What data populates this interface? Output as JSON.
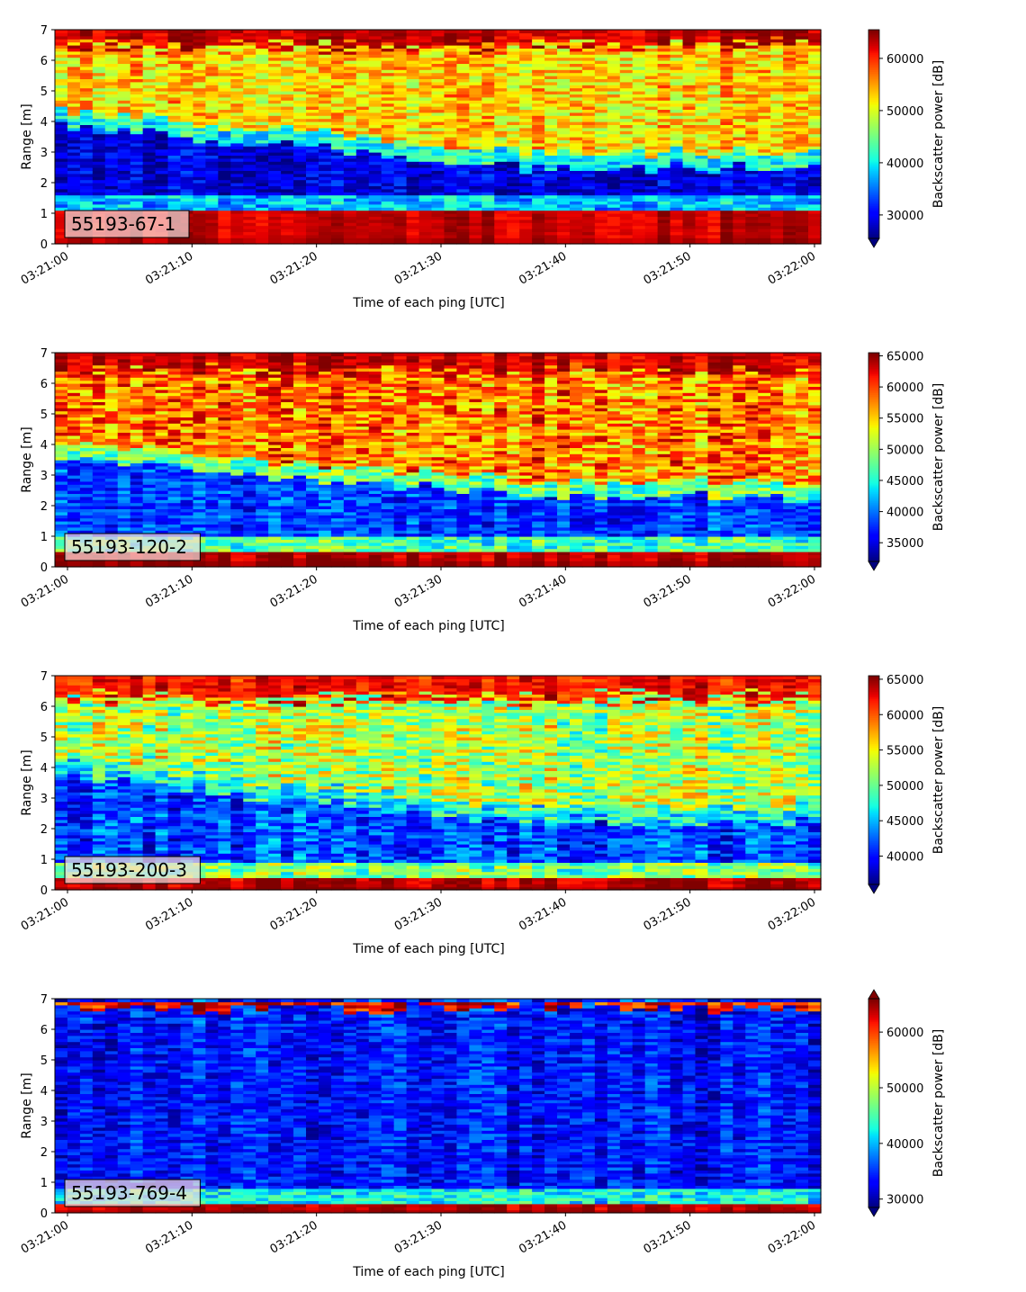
{
  "chart_data": [
    {
      "type": "heatmap",
      "panel_label": "55193-67-1",
      "xlabel": "Time of each ping [UTC]",
      "ylabel": "Range [m]",
      "xticks": [
        "03:21:00",
        "03:21:10",
        "03:21:20",
        "03:21:30",
        "03:21:40",
        "03:21:50",
        "03:22:00"
      ],
      "yticks": [
        "0",
        "1",
        "2",
        "3",
        "4",
        "5",
        "6",
        "7"
      ],
      "ylim": [
        0,
        7
      ],
      "colorbar": {
        "label": "Backscatter power [dB]",
        "ticks": [
          "30000",
          "40000",
          "50000",
          "60000"
        ],
        "tick_values": [
          30000,
          40000,
          50000,
          60000
        ],
        "range": [
          25500,
          65500
        ],
        "extend": "min"
      },
      "colormap": "jet",
      "profile": {
        "bottom_edge": 0.22,
        "bottom_band_top": 1.12,
        "bottom_band_value": 64000,
        "layer_top_start": 3.9,
        "layer_top_end": 2.5,
        "layer_value": 29000,
        "above_value": 53000,
        "top_value": 65000,
        "top_start": 6.5
      }
    },
    {
      "type": "heatmap",
      "panel_label": "55193-120-2",
      "xlabel": "Time of each ping [UTC]",
      "ylabel": "Range [m]",
      "xticks": [
        "03:21:00",
        "03:21:10",
        "03:21:20",
        "03:21:30",
        "03:21:40",
        "03:21:50",
        "03:22:00"
      ],
      "yticks": [
        "0",
        "1",
        "2",
        "3",
        "4",
        "5",
        "6",
        "7"
      ],
      "ylim": [
        0,
        7
      ],
      "colorbar": {
        "label": "Backscatter power [dB]",
        "ticks": [
          "35000",
          "40000",
          "45000",
          "50000",
          "55000",
          "60000",
          "65000"
        ],
        "tick_values": [
          35000,
          40000,
          45000,
          50000,
          55000,
          60000,
          65000
        ],
        "range": [
          32000,
          65500
        ],
        "extend": "min"
      },
      "colormap": "jet",
      "profile": {
        "bottom_edge": 0.22,
        "bottom_band_top": 0.55,
        "bottom_band_value": 65000,
        "layer_top_start": 3.6,
        "layer_top_end": 2.3,
        "layer_value": 38000,
        "above_value": 58000,
        "top_value": 65000,
        "top_start": 6.4
      }
    },
    {
      "type": "heatmap",
      "panel_label": "55193-200-3",
      "xlabel": "Time of each ping [UTC]",
      "ylabel": "Range [m]",
      "xticks": [
        "03:21:00",
        "03:21:10",
        "03:21:20",
        "03:21:30",
        "03:21:40",
        "03:21:50",
        "03:22:00"
      ],
      "yticks": [
        "0",
        "1",
        "2",
        "3",
        "4",
        "5",
        "6",
        "7"
      ],
      "ylim": [
        0,
        7
      ],
      "colorbar": {
        "label": "Backscatter power [dB]",
        "ticks": [
          "40000",
          "45000",
          "50000",
          "55000",
          "60000",
          "65000"
        ],
        "tick_values": [
          40000,
          45000,
          50000,
          55000,
          60000,
          65000
        ],
        "range": [
          36000,
          65500
        ],
        "extend": "min"
      },
      "colormap": "jet",
      "profile": {
        "bottom_edge": 0.1,
        "bottom_band_top": 0.45,
        "bottom_band_value": 65000,
        "layer_top_start": 3.7,
        "layer_top_end": 2.2,
        "layer_value": 41500,
        "above_value": 52500,
        "top_value": 64000,
        "top_start": 6.3
      }
    },
    {
      "type": "heatmap",
      "panel_label": "55193-769-4",
      "xlabel": "Time of each ping [UTC]",
      "ylabel": "Range [m]",
      "xticks": [
        "03:21:00",
        "03:21:10",
        "03:21:20",
        "03:21:30",
        "03:21:40",
        "03:21:50",
        "03:22:00"
      ],
      "yticks": [
        "0",
        "1",
        "2",
        "3",
        "4",
        "5",
        "6",
        "7"
      ],
      "ylim": [
        0,
        7
      ],
      "colorbar": {
        "label": "Backscatter power [dB]",
        "ticks": [
          "30000",
          "40000",
          "50000",
          "60000"
        ],
        "tick_values": [
          30000,
          40000,
          50000,
          60000
        ],
        "range": [
          28500,
          66000
        ],
        "extend": "both"
      },
      "colormap": "jet",
      "profile": {
        "bottom_edge": 0.1,
        "bottom_band_top": 0.35,
        "bottom_band_value": 65000,
        "layer_top_start": 6.2,
        "layer_top_end": 6.2,
        "layer_value": 33500,
        "above_value": 33500,
        "top_value": 62000,
        "top_start": 6.2,
        "top_band_end": 6.9
      }
    }
  ]
}
